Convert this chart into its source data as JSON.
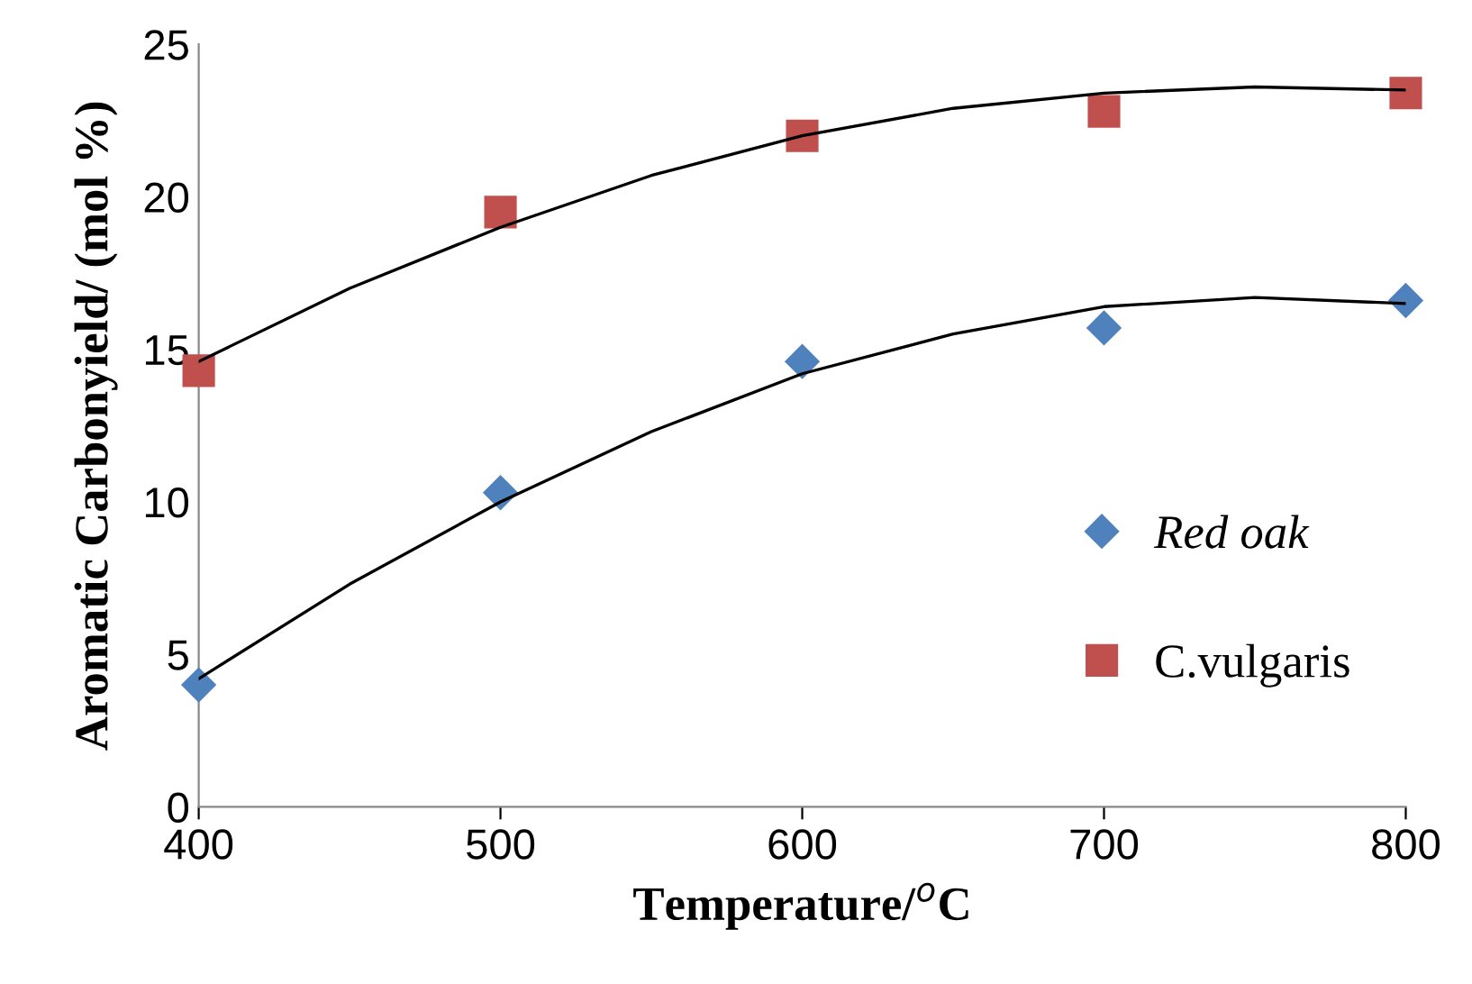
{
  "chart_data": {
    "type": "scatter",
    "xlabel": "Temperature/$^{o}$C",
    "ylabel": "Aromatic Carbonyield/ (mol %)",
    "xlim": [
      400,
      800
    ],
    "xticks": [
      400,
      500,
      600,
      700,
      800
    ],
    "ylim": [
      0,
      25
    ],
    "yticks": [
      0,
      5,
      10,
      15,
      20,
      25
    ],
    "grid": false,
    "legend": "right",
    "series": [
      {
        "name": "Red oak",
        "color": "#4f81bd",
        "marker": "diamond",
        "x": [
          400,
          500,
          600,
          700,
          800
        ],
        "values": [
          4.0,
          10.3,
          14.6,
          15.7,
          16.6
        ]
      },
      {
        "name": "C.vulgaris",
        "color": "#c0504d",
        "marker": "square",
        "x": [
          400,
          500,
          600,
          700,
          800
        ],
        "values": [
          14.3,
          19.5,
          22.0,
          22.8,
          23.4
        ]
      },
      {
        "type": "line",
        "color": "#000000",
        "x": [
          400,
          450,
          500,
          550,
          600,
          650,
          700,
          750,
          800
        ],
        "values": [
          4.2,
          7.3,
          10.0,
          12.3,
          14.2,
          15.5,
          16.4,
          16.7,
          16.5
        ]
      },
      {
        "type": "line",
        "color": "#000000",
        "x": [
          400,
          450,
          500,
          550,
          600,
          650,
          700,
          750,
          800
        ],
        "values": [
          14.6,
          17.0,
          19.0,
          20.7,
          22.0,
          22.9,
          23.4,
          23.6,
          23.5
        ]
      }
    ]
  }
}
